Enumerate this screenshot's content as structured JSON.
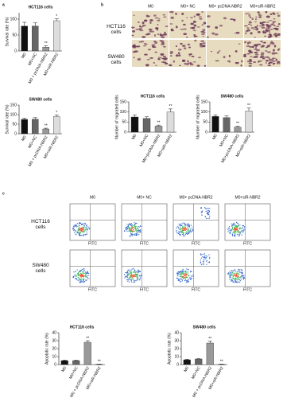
{
  "panel_labels": [
    "a",
    "b",
    "c"
  ],
  "migration_images": {
    "columns": [
      "M0",
      "M0+ NC",
      "M0+ pcDNA-NBR2",
      "M0+siR-NBR2"
    ],
    "rows": [
      "HCT116 cells",
      "SW480 cells"
    ]
  },
  "flow_cytometry": {
    "columns": [
      "M0",
      "M0+ NC",
      "M0+ pcDNA-NBR2",
      "M0+siR-NBR2"
    ],
    "rows": [
      "HCT116 cells",
      "SW480 cells"
    ],
    "x_label": "FITC"
  },
  "chart_data": [
    {
      "type": "bar",
      "title": "HCT116 cells",
      "ylabel": "Survival rate (%)",
      "categories": [
        "M0",
        "M0+NC",
        "M0 + pcDNA-NBR2",
        "M0+siR-NBR2"
      ],
      "values": [
        78,
        78,
        12,
        95
      ],
      "errors": [
        12,
        10,
        4,
        6
      ],
      "annotations": [
        null,
        null,
        "**",
        "*"
      ],
      "colors": [
        "#111111",
        "#666666",
        "#999999",
        "#dddddd"
      ],
      "ylim": [
        0,
        120
      ],
      "yticks": [
        0,
        50,
        100
      ]
    },
    {
      "type": "bar",
      "title": "SW480 cells",
      "ylabel": "Survival rate (%)",
      "categories": [
        "M0",
        "M0+NC",
        "M0 + pcDNA-NBR2",
        "M0+siR-NBR2"
      ],
      "values": [
        75,
        76,
        25,
        90
      ],
      "errors": [
        6,
        8,
        4,
        8
      ],
      "annotations": [
        null,
        null,
        "**",
        "*"
      ],
      "colors": [
        "#111111",
        "#666666",
        "#999999",
        "#dddddd"
      ],
      "ylim": [
        0,
        150
      ],
      "yticks": [
        0,
        50,
        100,
        150
      ]
    },
    {
      "type": "bar",
      "title": "HCT116 cells",
      "ylabel": "Number of migrated cells",
      "categories": [
        "M0",
        "M0+NC",
        "M0+pcDNA-NBR2",
        "M0+siR-NBR2"
      ],
      "values": [
        75,
        68,
        30,
        100
      ],
      "errors": [
        10,
        8,
        5,
        15
      ],
      "annotations": [
        null,
        null,
        "**",
        "**"
      ],
      "colors": [
        "#111111",
        "#666666",
        "#999999",
        "#dddddd"
      ],
      "ylim": [
        0,
        150
      ],
      "yticks": [
        0,
        50,
        100,
        150
      ]
    },
    {
      "type": "bar",
      "title": "SW480 cells",
      "ylabel": "Number of migrated cells",
      "categories": [
        "M0",
        "M0+NC",
        "M0+pcDNA-NBR2",
        "M0+siR-NBR2"
      ],
      "values": [
        78,
        72,
        25,
        105
      ],
      "errors": [
        8,
        8,
        5,
        14
      ],
      "annotations": [
        null,
        null,
        "**",
        "**"
      ],
      "colors": [
        "#111111",
        "#666666",
        "#999999",
        "#dddddd"
      ],
      "ylim": [
        0,
        150
      ],
      "yticks": [
        0,
        50,
        100,
        150
      ]
    },
    {
      "type": "bar",
      "title": "HCT116 cells",
      "ylabel": "Apoptotic rate (%)",
      "categories": [
        "M0",
        "M0+NC",
        "M0 + pcDNA-NBR2",
        "M0+siR-NBR2"
      ],
      "values": [
        5,
        5,
        28,
        0.5
      ],
      "errors": [
        0.6,
        0.5,
        2,
        0.2
      ],
      "annotations": [
        null,
        null,
        "**",
        "**"
      ],
      "colors": [
        "#111111",
        "#666666",
        "#999999",
        "#dddddd"
      ],
      "ylim": [
        0,
        40
      ],
      "yticks": [
        0,
        10,
        20,
        30,
        40
      ]
    },
    {
      "type": "bar",
      "title": "SW480 cells",
      "ylabel": "Apoptotic rate (%)",
      "categories": [
        "M0",
        "M0+NC",
        "M0 + pcDNA-NBR2",
        "M0+siR-NBR2"
      ],
      "values": [
        6,
        7,
        27,
        0.5
      ],
      "errors": [
        0.6,
        0.5,
        2.5,
        0.2
      ],
      "annotations": [
        null,
        null,
        "**",
        "**"
      ],
      "colors": [
        "#111111",
        "#666666",
        "#999999",
        "#dddddd"
      ],
      "ylim": [
        0,
        40
      ],
      "yticks": [
        0,
        10,
        20,
        30,
        40
      ]
    }
  ]
}
